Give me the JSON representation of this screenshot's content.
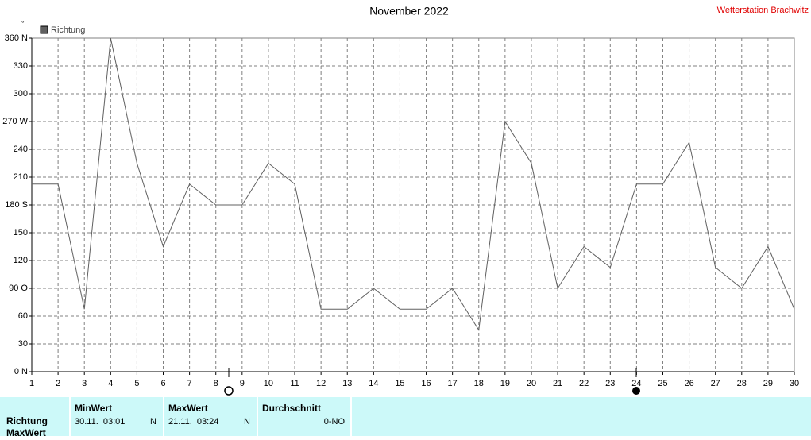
{
  "station": "Wetterstation Brachwitz",
  "chart_data": {
    "type": "line",
    "title": "November 2022",
    "y_unit": "°",
    "x": [
      1,
      2,
      3,
      4,
      5,
      6,
      7,
      8,
      9,
      10,
      11,
      12,
      13,
      14,
      15,
      16,
      17,
      18,
      19,
      20,
      21,
      22,
      23,
      24,
      25,
      26,
      27,
      28,
      29,
      30
    ],
    "xlim": [
      1,
      30
    ],
    "xticks": [
      1,
      2,
      3,
      4,
      5,
      6,
      7,
      8,
      9,
      10,
      11,
      12,
      13,
      14,
      15,
      16,
      17,
      18,
      19,
      20,
      21,
      22,
      23,
      24,
      25,
      26,
      27,
      28,
      29,
      30
    ],
    "ylim": [
      0,
      360
    ],
    "yticks": [
      {
        "value": 0,
        "label": "0 N"
      },
      30,
      60,
      {
        "value": 90,
        "label": "90 O"
      },
      120,
      150,
      {
        "value": 180,
        "label": "180 S"
      },
      210,
      240,
      {
        "value": 270,
        "label": "270 W"
      },
      300,
      330,
      {
        "value": 360,
        "label": "360 N"
      }
    ],
    "grid": true,
    "series": [
      {
        "name": "Richtung",
        "color": "#606060",
        "values": [
          202.5,
          202.5,
          67.5,
          360,
          225,
          135,
          202.5,
          180,
          180,
          225,
          202.5,
          67.5,
          67.5,
          90,
          67.5,
          67.5,
          90,
          45,
          270,
          225,
          90,
          135,
          112.5,
          202.5,
          202.5,
          247.5,
          112.5,
          90,
          135,
          67.5
        ]
      }
    ]
  },
  "table": {
    "headers": [
      "MinWert",
      "MaxWert",
      "Durchschnitt"
    ],
    "row_labels": [
      "Richtung",
      "MaxWert"
    ],
    "cells": [
      [
        "30.11.  03:01",
        "N"
      ],
      [
        "21.11.  03:24",
        "N"
      ],
      [
        "0-NO"
      ]
    ]
  }
}
